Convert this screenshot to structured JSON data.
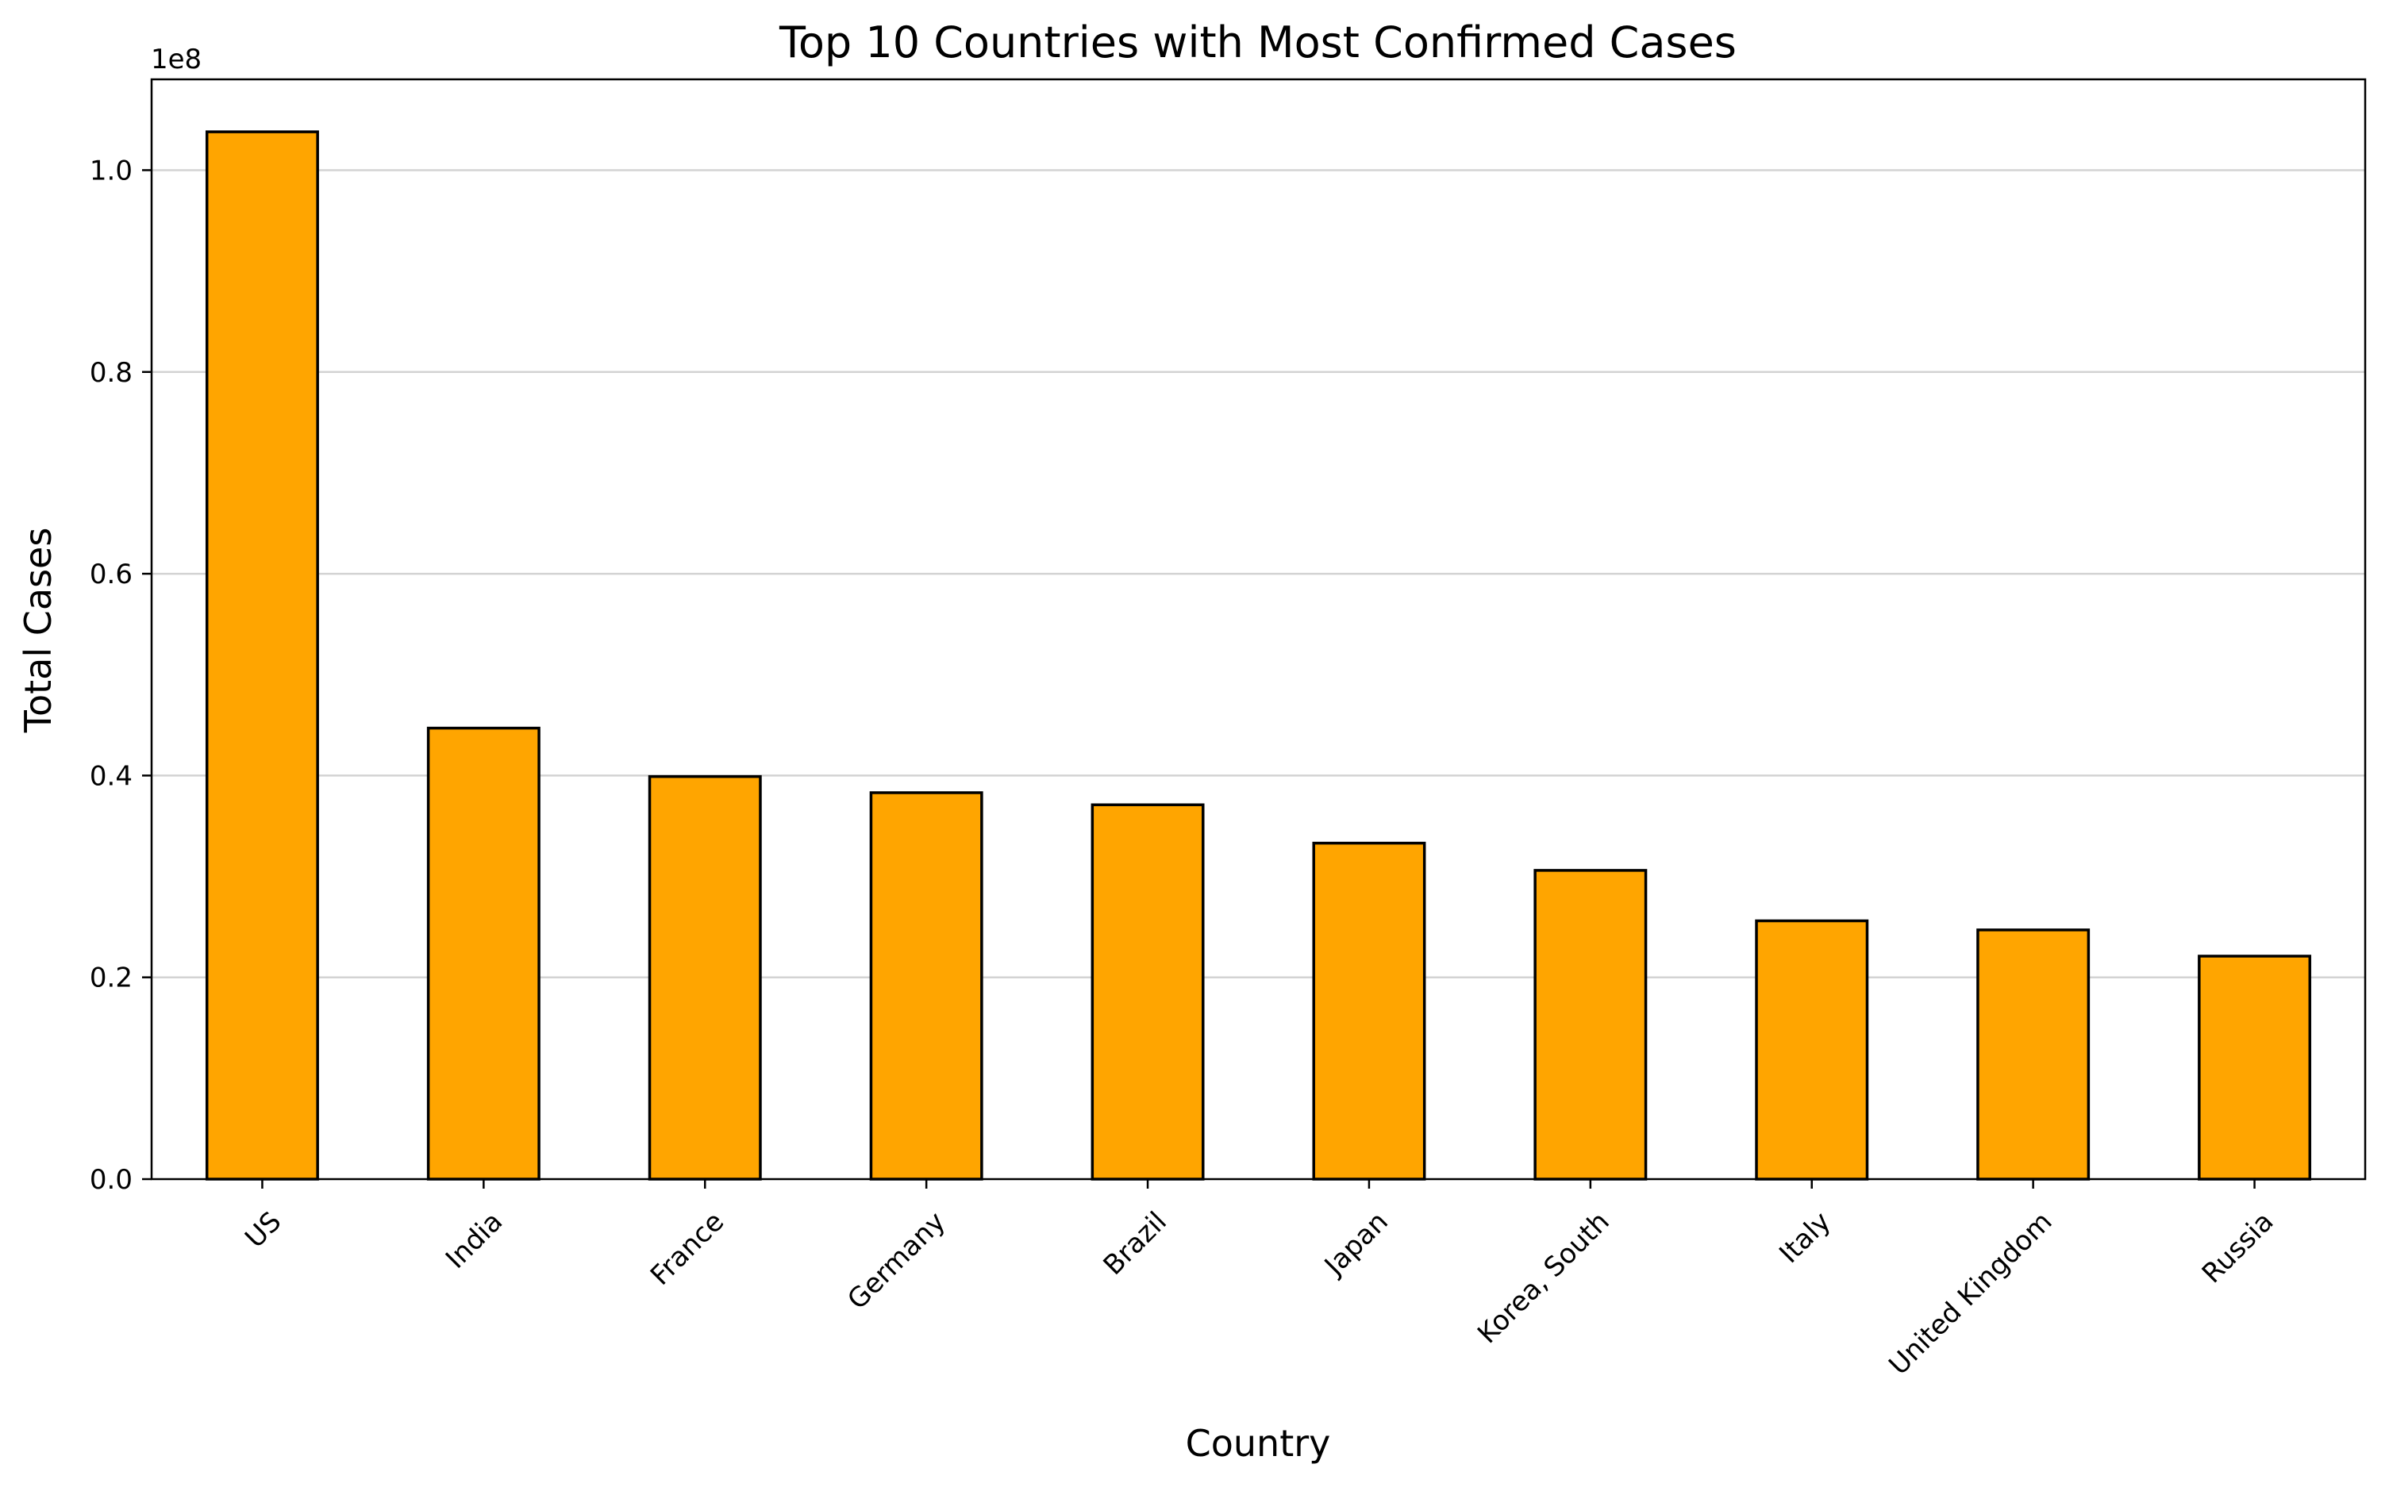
{
  "chart_data": {
    "type": "bar",
    "title": "Top 10 Countries with Most Confirmed Cases",
    "xlabel": "Country",
    "ylabel": "Total Cases",
    "offset_label": "1e8",
    "categories": [
      "US",
      "India",
      "France",
      "Germany",
      "Brazil",
      "Japan",
      "Korea, South",
      "Italy",
      "United Kingdom",
      "Russia"
    ],
    "values": [
      103800000,
      44700000,
      39900000,
      38300000,
      37100000,
      33300000,
      30600000,
      25600000,
      24700000,
      22100000
    ],
    "ylim": [
      0,
      109000000
    ],
    "yticks": [
      0,
      20000000,
      40000000,
      60000000,
      80000000,
      100000000
    ],
    "ytick_labels": [
      "0.0",
      "0.2",
      "0.4",
      "0.6",
      "0.8",
      "1.0"
    ],
    "grid": "horizontal",
    "colors": {
      "bar_fill": "#FFA500",
      "bar_edge": "#000000",
      "grid": "#d3d3d3"
    }
  }
}
